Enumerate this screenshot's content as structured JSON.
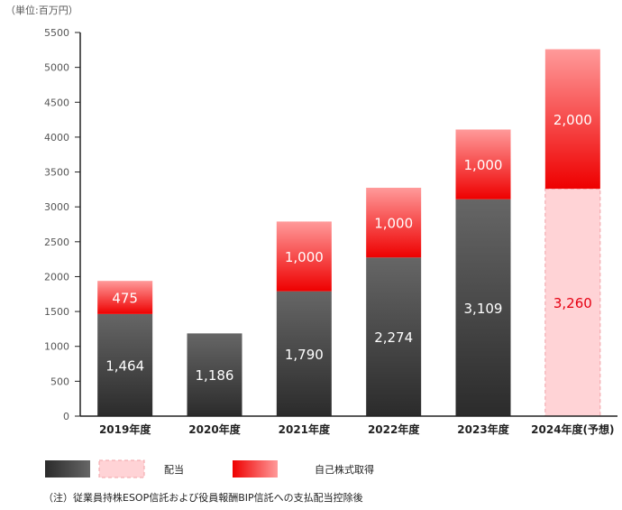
{
  "unit_label": "（単位:百万円）",
  "note": "（注）従業員持株ESOP信託および役員報酬BIP信託への支払配当控除後",
  "legend": {
    "dividend_label": "配当",
    "buyback_label": "自己株式取得"
  },
  "colors": {
    "dividend_top": "#666666",
    "dividend_bottom": "#2b2b2b",
    "buyback_top": "#ff9a9a",
    "buyback_bottom": "#ee0000",
    "forecast_fill": "#ffd3d6",
    "forecast_border": "#f0a0a6",
    "forecast_text": "#e60012",
    "axis": "#222222"
  },
  "chart_data": {
    "type": "bar",
    "stacked": true,
    "categories": [
      "2019年度",
      "2020年度",
      "2021年度",
      "2022年度",
      "2023年度",
      "2024年度(予想)"
    ],
    "series": [
      {
        "name": "配当",
        "values": [
          1464,
          1186,
          1790,
          2274,
          3109,
          3260
        ],
        "labels": [
          "1,464",
          "1,186",
          "1,790",
          "2,274",
          "3,109",
          "3,260"
        ]
      },
      {
        "name": "自己株式取得",
        "values": [
          475,
          0,
          1000,
          1000,
          1000,
          2000
        ],
        "labels": [
          "475",
          "",
          "1,000",
          "1,000",
          "1,000",
          "2,000"
        ]
      }
    ],
    "forecast_index": 5,
    "ylim": [
      0,
      5500
    ],
    "yticks": [
      "0",
      "500",
      "1000",
      "1500",
      "2000",
      "2500",
      "3000",
      "3500",
      "4000",
      "4500",
      "5000",
      "5500"
    ],
    "ytick_values": [
      0,
      500,
      1000,
      1500,
      2000,
      2500,
      3000,
      3500,
      4000,
      4500,
      5000,
      5500
    ],
    "grid": false,
    "legend_position": "bottom"
  }
}
